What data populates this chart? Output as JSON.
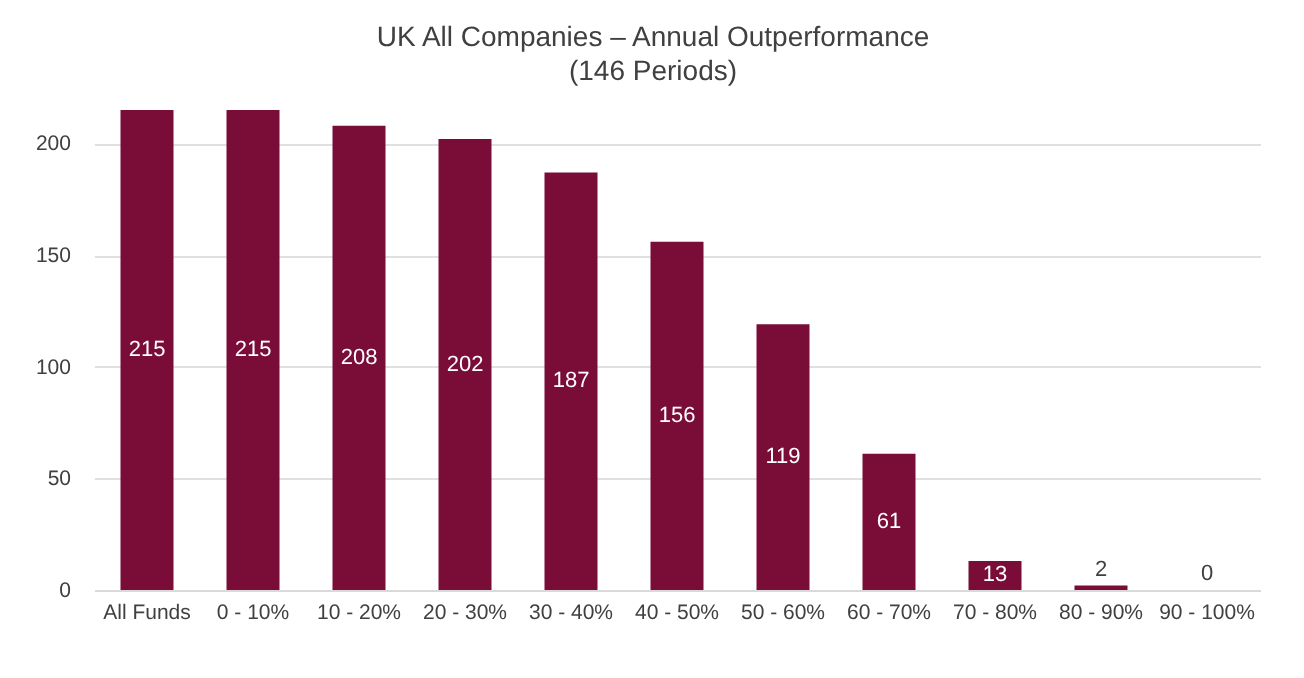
{
  "chart_data": {
    "type": "bar",
    "title": "UK All Companies – Annual Outperformance",
    "subtitle": "(146 Periods)",
    "categories": [
      "All Funds",
      "0 - 10%",
      "10 - 20%",
      "20 - 30%",
      "30 - 40%",
      "40 - 50%",
      "50 - 60%",
      "60 - 70%",
      "70 - 80%",
      "80 - 90%",
      "90 - 100%"
    ],
    "values": [
      215,
      215,
      208,
      202,
      187,
      156,
      119,
      61,
      13,
      2,
      0
    ],
    "color": "#7a0d38",
    "ylim": [
      0,
      215
    ],
    "yticks": [
      0,
      50,
      100,
      150,
      200
    ],
    "grid": "y",
    "data_labels": true
  }
}
